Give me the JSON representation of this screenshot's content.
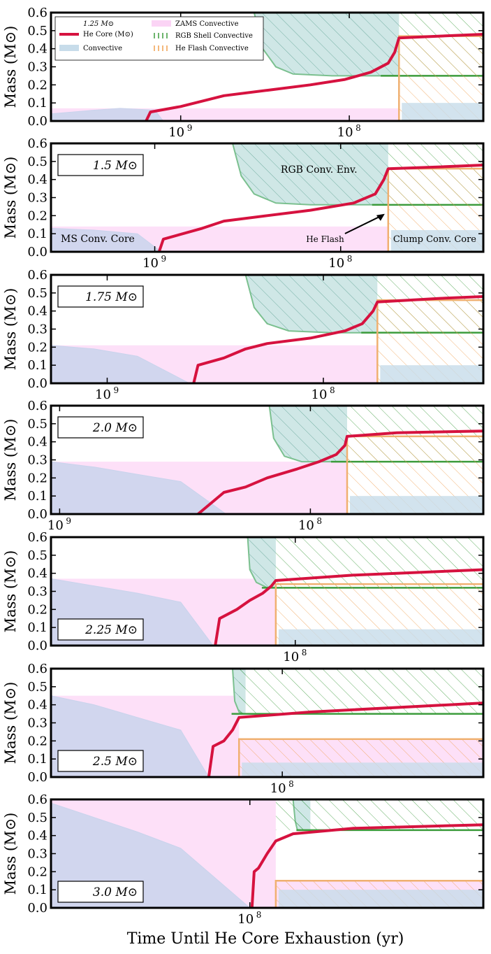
{
  "figure": {
    "xlabel": "Time Until He Core Exhaustion (yr)",
    "ylabel": "Mass (M⊙)"
  },
  "legend": {
    "title": "1.25 M⊙",
    "entries": [
      {
        "label": "He Core (M⊙)",
        "key": "he_core",
        "color": "#d6123f"
      },
      {
        "label": "Convective",
        "key": "convective",
        "color": "#c7dcea"
      },
      {
        "label": "ZAMS Convective",
        "key": "zams",
        "color": "#fbd4f5"
      },
      {
        "label": "RGB Shell Convective",
        "key": "rgb_shell",
        "color": "#3c9c3c"
      },
      {
        "label": "He Flash Convective",
        "key": "he_flash",
        "color": "#f0a050"
      }
    ]
  },
  "annotations": {
    "ms_core": "MS Conv. Core",
    "he_flash": "He Flash",
    "clump_core": "Clump Conv. Core",
    "rgb_env": "RGB Conv. Env."
  },
  "chart_data": [
    {
      "type": "area",
      "mass_label": "",
      "ylim": [
        0,
        0.6
      ],
      "yticks": [
        "0.0",
        "0.1",
        "0.2",
        "0.3",
        "0.4",
        "0.5",
        "0.6"
      ],
      "xticks": [
        {
          "label": "10",
          "exp": "9",
          "frac": 0.3
        },
        {
          "label": "10",
          "exp": "8",
          "frac": 0.69
        }
      ],
      "flash_frac": 0.805,
      "zams_height": 0.07,
      "ms_core": [
        [
          0.0,
          0.04
        ],
        [
          0.1,
          0.06
        ],
        [
          0.16,
          0.07
        ],
        [
          0.24,
          0.06
        ],
        [
          0.26,
          0.0
        ]
      ],
      "ms_core_end": 0.26,
      "he_core": [
        [
          0.22,
          0.0
        ],
        [
          0.23,
          0.05
        ],
        [
          0.3,
          0.08
        ],
        [
          0.4,
          0.14
        ],
        [
          0.5,
          0.17
        ],
        [
          0.6,
          0.2
        ],
        [
          0.68,
          0.23
        ],
        [
          0.74,
          0.27
        ],
        [
          0.78,
          0.32
        ],
        [
          0.795,
          0.38
        ],
        [
          0.805,
          0.46
        ],
        [
          0.9,
          0.47
        ],
        [
          1.0,
          0.48
        ]
      ],
      "env_start": 0.47,
      "env_base": 0.25,
      "env_shape": [
        [
          0.47,
          0.6
        ],
        [
          0.49,
          0.4
        ],
        [
          0.52,
          0.3
        ],
        [
          0.56,
          0.26
        ],
        [
          0.65,
          0.25
        ],
        [
          0.795,
          0.25
        ]
      ],
      "env_end": 0.805,
      "rgb_shell_height": 0.25,
      "he_flash_height": 0.47,
      "clump_core_height": 0.1
    },
    {
      "type": "area",
      "mass_label": "1.5 M⊙",
      "ylim": [
        0,
        0.6
      ],
      "yticks": [
        "0.0",
        "0.1",
        "0.2",
        "0.3",
        "0.4",
        "0.5",
        "0.6"
      ],
      "xticks": [
        {
          "label": "10",
          "exp": "9",
          "frac": 0.24
        },
        {
          "label": "10",
          "exp": "8",
          "frac": 0.67
        }
      ],
      "flash_frac": 0.78,
      "zams_height": 0.14,
      "ms_core": [
        [
          0.0,
          0.13
        ],
        [
          0.1,
          0.12
        ],
        [
          0.2,
          0.1
        ],
        [
          0.255,
          0.0
        ]
      ],
      "ms_core_end": 0.255,
      "he_core": [
        [
          0.25,
          0.0
        ],
        [
          0.26,
          0.07
        ],
        [
          0.35,
          0.13
        ],
        [
          0.4,
          0.17
        ],
        [
          0.5,
          0.2
        ],
        [
          0.6,
          0.23
        ],
        [
          0.7,
          0.27
        ],
        [
          0.75,
          0.32
        ],
        [
          0.77,
          0.4
        ],
        [
          0.78,
          0.46
        ],
        [
          0.9,
          0.47
        ],
        [
          1.0,
          0.48
        ]
      ],
      "env_start": 0.42,
      "env_base": 0.26,
      "env_shape": [
        [
          0.42,
          0.6
        ],
        [
          0.44,
          0.42
        ],
        [
          0.47,
          0.32
        ],
        [
          0.52,
          0.27
        ],
        [
          0.6,
          0.26
        ],
        [
          0.775,
          0.26
        ]
      ],
      "env_end": 0.78,
      "rgb_shell_height": 0.26,
      "he_flash_height": 0.46,
      "clump_core_height": 0.12
    },
    {
      "type": "area",
      "mass_label": "1.75 M⊙",
      "ylim": [
        0,
        0.6
      ],
      "yticks": [
        "0.0",
        "0.1",
        "0.2",
        "0.3",
        "0.4",
        "0.5",
        "0.6"
      ],
      "xticks": [
        {
          "label": "10",
          "exp": "9",
          "frac": 0.13
        },
        {
          "label": "10",
          "exp": "8",
          "frac": 0.63
        }
      ],
      "flash_frac": 0.755,
      "zams_height": 0.21,
      "ms_core": [
        [
          0.0,
          0.21
        ],
        [
          0.1,
          0.19
        ],
        [
          0.2,
          0.15
        ],
        [
          0.32,
          0.0
        ]
      ],
      "ms_core_end": 0.32,
      "he_core": [
        [
          0.33,
          0.0
        ],
        [
          0.34,
          0.1
        ],
        [
          0.4,
          0.14
        ],
        [
          0.45,
          0.19
        ],
        [
          0.5,
          0.22
        ],
        [
          0.6,
          0.25
        ],
        [
          0.68,
          0.29
        ],
        [
          0.72,
          0.33
        ],
        [
          0.745,
          0.4
        ],
        [
          0.755,
          0.45
        ],
        [
          0.9,
          0.47
        ],
        [
          1.0,
          0.48
        ]
      ],
      "env_start": 0.45,
      "env_base": 0.28,
      "env_shape": [
        [
          0.45,
          0.6
        ],
        [
          0.47,
          0.42
        ],
        [
          0.5,
          0.33
        ],
        [
          0.55,
          0.29
        ],
        [
          0.65,
          0.28
        ],
        [
          0.75,
          0.28
        ]
      ],
      "env_end": 0.755,
      "rgb_shell_height": 0.28,
      "he_flash_height": 0.46,
      "clump_core_height": 0.1
    },
    {
      "type": "area",
      "mass_label": "2.0 M⊙",
      "ylim": [
        0,
        0.6
      ],
      "yticks": [
        "0.0",
        "0.1",
        "0.2",
        "0.3",
        "0.4",
        "0.5",
        "0.6"
      ],
      "xticks": [
        {
          "label": "10",
          "exp": "9",
          "frac": 0.02
        },
        {
          "label": "10",
          "exp": "8",
          "frac": 0.6
        }
      ],
      "flash_frac": 0.685,
      "zams_height": 0.29,
      "ms_core": [
        [
          0.0,
          0.29
        ],
        [
          0.1,
          0.26
        ],
        [
          0.2,
          0.22
        ],
        [
          0.3,
          0.18
        ],
        [
          0.405,
          0.0
        ]
      ],
      "ms_core_end": 0.405,
      "he_core": [
        [
          0.34,
          0.0
        ],
        [
          0.4,
          0.12
        ],
        [
          0.45,
          0.15
        ],
        [
          0.5,
          0.2
        ],
        [
          0.57,
          0.25
        ],
        [
          0.62,
          0.29
        ],
        [
          0.66,
          0.33
        ],
        [
          0.68,
          0.38
        ],
        [
          0.685,
          0.43
        ],
        [
          0.8,
          0.45
        ],
        [
          1.0,
          0.46
        ]
      ],
      "env_start": 0.505,
      "env_base": 0.29,
      "env_shape": [
        [
          0.505,
          0.6
        ],
        [
          0.515,
          0.42
        ],
        [
          0.54,
          0.32
        ],
        [
          0.58,
          0.29
        ],
        [
          0.68,
          0.29
        ]
      ],
      "env_end": 0.685,
      "rgb_shell_height": 0.29,
      "he_flash_height": 0.43,
      "clump_core_height": 0.1
    },
    {
      "type": "area",
      "mass_label": "2.25 M⊙",
      "ylim": [
        0,
        0.6
      ],
      "yticks": [
        "0.0",
        "0.1",
        "0.2",
        "0.3",
        "0.4",
        "0.5",
        "0.6"
      ],
      "xticks": [
        {
          "label": "10",
          "exp": "8",
          "frac": 0.565
        }
      ],
      "flash_frac": 0.52,
      "zams_height": 0.37,
      "ms_core": [
        [
          0.0,
          0.37
        ],
        [
          0.1,
          0.33
        ],
        [
          0.2,
          0.29
        ],
        [
          0.3,
          0.24
        ],
        [
          0.375,
          0.0
        ]
      ],
      "ms_core_end": 0.375,
      "he_core": [
        [
          0.38,
          0.0
        ],
        [
          0.39,
          0.15
        ],
        [
          0.43,
          0.2
        ],
        [
          0.46,
          0.25
        ],
        [
          0.49,
          0.29
        ],
        [
          0.51,
          0.33
        ],
        [
          0.52,
          0.36
        ],
        [
          0.7,
          0.39
        ],
        [
          1.0,
          0.42
        ]
      ],
      "env_start": 0.455,
      "env_base": 0.32,
      "env_shape": [
        [
          0.455,
          0.6
        ],
        [
          0.46,
          0.42
        ],
        [
          0.475,
          0.35
        ],
        [
          0.5,
          0.32
        ],
        [
          0.52,
          0.32
        ]
      ],
      "env_end": 0.52,
      "rgb_shell_height": 0.32,
      "he_flash_height": 0.34,
      "clump_core_height": 0.09
    },
    {
      "type": "area",
      "mass_label": "2.5 M⊙",
      "ylim": [
        0,
        0.6
      ],
      "yticks": [
        "0.0",
        "0.1",
        "0.2",
        "0.3",
        "0.4",
        "0.5",
        "0.6"
      ],
      "xticks": [
        {
          "label": "10",
          "exp": "8",
          "frac": 0.535
        }
      ],
      "flash_frac": 0.435,
      "zams_height": 0.45,
      "ms_core": [
        [
          0.0,
          0.45
        ],
        [
          0.1,
          0.4
        ],
        [
          0.2,
          0.33
        ],
        [
          0.3,
          0.26
        ],
        [
          0.365,
          0.0
        ]
      ],
      "ms_core_end": 0.365,
      "he_core": [
        [
          0.365,
          0.0
        ],
        [
          0.375,
          0.17
        ],
        [
          0.4,
          0.2
        ],
        [
          0.42,
          0.26
        ],
        [
          0.435,
          0.33
        ],
        [
          0.6,
          0.36
        ],
        [
          1.0,
          0.41
        ]
      ],
      "env_start": 0.42,
      "env_base": 0.35,
      "env_shape": [
        [
          0.42,
          0.6
        ],
        [
          0.425,
          0.42
        ],
        [
          0.435,
          0.36
        ],
        [
          0.445,
          0.35
        ],
        [
          0.45,
          0.35
        ]
      ],
      "env_end": 0.45,
      "rgb_shell_height": 0.35,
      "he_flash_height": 0.21,
      "clump_core_height": 0.08
    },
    {
      "type": "area",
      "mass_label": "3.0 M⊙",
      "ylim": [
        0,
        0.6
      ],
      "yticks": [
        "0.0",
        "0.1",
        "0.2",
        "0.3",
        "0.4",
        "0.5",
        "0.6"
      ],
      "xticks": [
        {
          "label": "10",
          "exp": "8",
          "frac": 0.46
        }
      ],
      "flash_frac": 0.52,
      "zams_height": 0.6,
      "ms_core": [
        [
          0.0,
          0.58
        ],
        [
          0.1,
          0.5
        ],
        [
          0.2,
          0.42
        ],
        [
          0.3,
          0.33
        ],
        [
          0.46,
          0.0
        ]
      ],
      "ms_core_end": 0.46,
      "he_core": [
        [
          0.465,
          0.0
        ],
        [
          0.47,
          0.2
        ],
        [
          0.48,
          0.22
        ],
        [
          0.5,
          0.3
        ],
        [
          0.52,
          0.37
        ],
        [
          0.56,
          0.41
        ],
        [
          0.7,
          0.44
        ],
        [
          1.0,
          0.46
        ]
      ],
      "env_start": 0.56,
      "env_base": 0.43,
      "env_shape": [
        [
          0.56,
          0.6
        ],
        [
          0.565,
          0.48
        ],
        [
          0.57,
          0.43
        ],
        [
          0.6,
          0.43
        ]
      ],
      "env_end": 0.6,
      "rgb_shell_height": 0.43,
      "he_flash_height": 0.15,
      "clump_core_height": 0.1
    }
  ]
}
